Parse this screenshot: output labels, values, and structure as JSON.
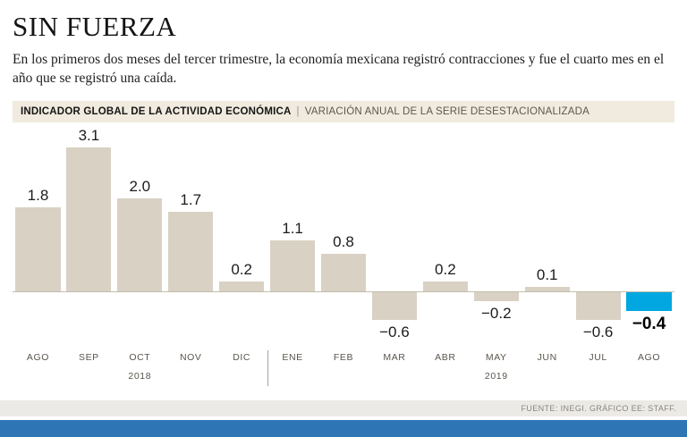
{
  "page": {
    "title": "SIN FUERZA",
    "subtitle": "En los primeros dos meses del tercer trimestre, la economía mexicana registró contracciones y fue el cuarto mes en el año que se registró una caída.",
    "source": "FUENTE: INEGI. GRÁFICO EE: STAFF."
  },
  "header_bar": {
    "primary": "INDICADOR GLOBAL DE LA ACTIVIDAD ECONÓMICA",
    "separator": "|",
    "secondary": "VARIACIÓN ANUAL DE LA SERIE DESESTACIONALIZADA"
  },
  "chart_data": {
    "type": "bar",
    "title": "Indicador Global de la Actividad Económica, variación anual de la serie desestacionalizada",
    "categories": [
      "AGO",
      "SEP",
      "OCT",
      "NOV",
      "DIC",
      "ENE",
      "FEB",
      "MAR",
      "ABR",
      "MAY",
      "JUN",
      "JUL",
      "AGO"
    ],
    "values": [
      1.8,
      3.1,
      2.0,
      1.7,
      0.2,
      1.1,
      0.8,
      -0.6,
      0.2,
      -0.2,
      0.1,
      -0.6,
      -0.4
    ],
    "value_labels": [
      "1.8",
      "3.1",
      "2.0",
      "1.7",
      "0.2",
      "1.1",
      "0.8",
      "−0.6",
      "0.2",
      "−0.2",
      "0.1",
      "−0.6",
      "−0.4"
    ],
    "highlight_index": 12,
    "bar_color": "#d9d1c3",
    "highlight_color": "#00a7e0",
    "xlabel": "",
    "ylabel": "",
    "ylim": [
      -1.0,
      3.5
    ],
    "grid": false,
    "legend": "none",
    "year_groups": [
      {
        "label": "2018",
        "slot": 2
      },
      {
        "label": "2019",
        "slot": 9
      }
    ],
    "divider_after_index": 4
  }
}
